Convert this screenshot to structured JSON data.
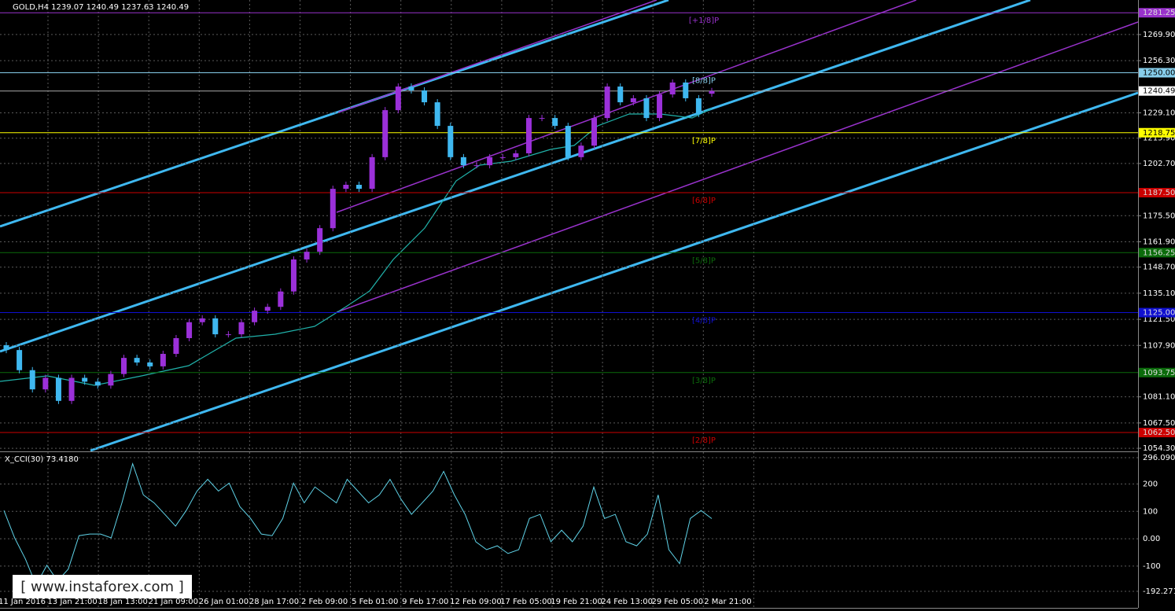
{
  "chart_data": {
    "type": "candlestick",
    "title": "GOLD,H4 1239.07 1240.49 1237.63 1240.49",
    "categories": [
      "11 Jan 2016",
      "13 Jan 21:00",
      "18 Jan 13:00",
      "21 Jan 09:00",
      "26 Jan 01:00",
      "28 Jan 17:00",
      "2 Feb 09:00",
      "5 Feb 01:00",
      "9 Feb 17:00",
      "12 Feb 09:00",
      "17 Feb 05:00",
      "19 Feb 21:00",
      "24 Feb 13:00",
      "29 Feb 05:00",
      "2 Mar 21:00"
    ],
    "open": [
      1108,
      1105.5,
      1095,
      1085,
      1091,
      1079,
      1091,
      1089,
      1087,
      1093,
      1101.4,
      1099,
      1097,
      1103.5,
      1111.7,
      1120,
      1122,
      1113.7,
      1113.7,
      1120,
      1126,
      1128,
      1136,
      1152.7,
      1156.7,
      1169,
      1189.5,
      1191.6,
      1189.5,
      1206,
      1230.5,
      1242.8,
      1240.8,
      1234.6,
      1222.3,
      1206,
      1201.8,
      1201.8,
      1206,
      1206,
      1208,
      1226.4,
      1226.4,
      1222.3,
      1206,
      1212,
      1226.4,
      1242.8,
      1234.6,
      1236.7,
      1226.4,
      1238.7,
      1244.9,
      1236.7,
      1239.07
    ],
    "close": [
      1105.5,
      1095,
      1085,
      1091,
      1079,
      1091,
      1089,
      1087,
      1093,
      1101.4,
      1099,
      1097,
      1103.5,
      1111.7,
      1120,
      1122,
      1113.7,
      1113.7,
      1120,
      1126,
      1128,
      1136,
      1152.7,
      1156.7,
      1169,
      1189.5,
      1191.6,
      1189.5,
      1206,
      1230.5,
      1242.8,
      1240.8,
      1234.6,
      1222.3,
      1206,
      1201.8,
      1201.8,
      1206,
      1206,
      1208,
      1226.4,
      1226.4,
      1222.3,
      1206,
      1212,
      1226.4,
      1242.8,
      1234.6,
      1236.7,
      1226.4,
      1238.7,
      1244.9,
      1236.7,
      1228.5,
      1240.49
    ],
    "up_color": "#9b30d9",
    "down_color": "#3fb8f0",
    "ylim": [
      1053.1,
      1287.9
    ],
    "yticks": [
      {
        "value": 1269.9,
        "label": "1269.90"
      },
      {
        "value": 1256.3,
        "label": "1256.30"
      },
      {
        "value": 1229.1,
        "label": "1229.10"
      },
      {
        "value": 1215.9,
        "label": "1215.90"
      },
      {
        "value": 1202.7,
        "label": "1202.70"
      },
      {
        "value": 1175.5,
        "label": "1175.50"
      },
      {
        "value": 1161.9,
        "label": "1161.90"
      },
      {
        "value": 1148.7,
        "label": "1148.70"
      },
      {
        "value": 1135.1,
        "label": "1135.10"
      },
      {
        "value": 1121.5,
        "label": "1121.50"
      },
      {
        "value": 1107.9,
        "label": "1107.90"
      },
      {
        "value": 1081.1,
        "label": "1081.10"
      },
      {
        "value": 1067.5,
        "label": "1067.50"
      },
      {
        "value": 1054.3,
        "label": "1054.30"
      }
    ],
    "grid": true,
    "last_price": 1240.49,
    "levels": [
      {
        "name": "[+1/8]P",
        "price": 1281.25,
        "color": "#9932cc"
      },
      {
        "name": "[8/8]P",
        "price": {
          "value": 1250,
          "label": "1250.00"
        },
        "color": "#87ceeb"
      },
      {
        "name": "[7/8]P",
        "price": 1218.75,
        "color": "#ffff00"
      },
      {
        "name": "[6/8]P",
        "price": {
          "value": 1187.5,
          "label": "1187.50"
        },
        "color": "#cc0000"
      },
      {
        "name": "[5/8]P",
        "price": 1156.25,
        "color": "#0b6b0b"
      },
      {
        "name": "[4/8]P",
        "price": {
          "value": 1125,
          "label": "1125.00"
        },
        "color": "#1010d0"
      },
      {
        "name": "[3/8]P",
        "price": 1093.75,
        "color": "#0b6b0b"
      },
      {
        "name": "[2/8]P",
        "price": {
          "value": 1062.5,
          "label": "1062.50"
        },
        "color": "#cc0000"
      }
    ],
    "indicator": {
      "title": "X_CCI(30) 73.4180",
      "color": "#5fd3e8",
      "values": [
        103,
        3,
        -74,
        -169,
        -97,
        -154,
        -111,
        11,
        17,
        17,
        3,
        131,
        274,
        160,
        131,
        89,
        46,
        103,
        174,
        217,
        174,
        203,
        117,
        74,
        17,
        11,
        74,
        203,
        131,
        189,
        160,
        131,
        217,
        174,
        131,
        160,
        217,
        146,
        89,
        131,
        174,
        246,
        160,
        89,
        -11,
        -40,
        -26,
        -54,
        -40,
        74,
        89,
        -11,
        31,
        -11,
        46,
        189,
        74,
        89,
        -11,
        -26,
        17,
        160,
        -40,
        -91,
        74,
        103,
        73.418
      ],
      "ylim": [
        -192.2717,
        296.0902
      ],
      "yticks": [
        296.0902,
        200,
        100,
        {
          "value": 0,
          "label": "0.00"
        },
        -100,
        -192.2717
      ]
    },
    "watermark": "[ www.instaforex.com ]"
  }
}
